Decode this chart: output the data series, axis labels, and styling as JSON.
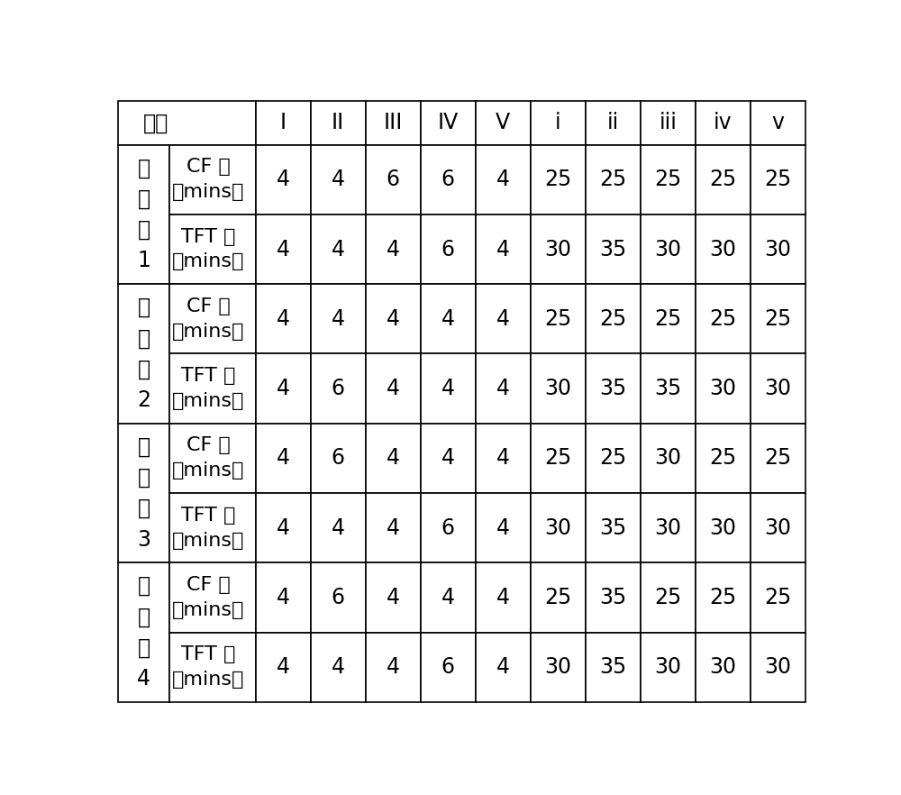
{
  "headers": [
    "编号",
    "",
    "I",
    "II",
    "III",
    "IV",
    "V",
    "i",
    "ii",
    "iii",
    "iv",
    "v"
  ],
  "row_groups": [
    {
      "group_label_lines": [
        "实",
        "施",
        "例",
        "1"
      ],
      "rows": [
        {
          "sub_line1": "CF 面",
          "sub_line2": "（mins）",
          "values": [
            "4",
            "4",
            "6",
            "6",
            "4",
            "25",
            "25",
            "25",
            "25",
            "25"
          ]
        },
        {
          "sub_line1": "TFT 面",
          "sub_line2": "（mins）",
          "values": [
            "4",
            "4",
            "4",
            "6",
            "4",
            "30",
            "35",
            "30",
            "30",
            "30"
          ]
        }
      ]
    },
    {
      "group_label_lines": [
        "实",
        "施",
        "例",
        "2"
      ],
      "rows": [
        {
          "sub_line1": "CF 面",
          "sub_line2": "（mins）",
          "values": [
            "4",
            "4",
            "4",
            "4",
            "4",
            "25",
            "25",
            "25",
            "25",
            "25"
          ]
        },
        {
          "sub_line1": "TFT 面",
          "sub_line2": "（mins）",
          "values": [
            "4",
            "6",
            "4",
            "4",
            "4",
            "30",
            "35",
            "35",
            "30",
            "30"
          ]
        }
      ]
    },
    {
      "group_label_lines": [
        "实",
        "施",
        "例",
        "3"
      ],
      "rows": [
        {
          "sub_line1": "CF 面",
          "sub_line2": "（mins）",
          "values": [
            "4",
            "6",
            "4",
            "4",
            "4",
            "25",
            "25",
            "30",
            "25",
            "25"
          ]
        },
        {
          "sub_line1": "TFT 面",
          "sub_line2": "（mins）",
          "values": [
            "4",
            "4",
            "4",
            "6",
            "4",
            "30",
            "35",
            "30",
            "30",
            "30"
          ]
        }
      ]
    },
    {
      "group_label_lines": [
        "实",
        "施",
        "例",
        "4"
      ],
      "rows": [
        {
          "sub_line1": "CF 面",
          "sub_line2": "（mins）",
          "values": [
            "4",
            "6",
            "4",
            "4",
            "4",
            "25",
            "35",
            "25",
            "25",
            "25"
          ]
        },
        {
          "sub_line1": "TFT 面",
          "sub_line2": "（mins）",
          "values": [
            "4",
            "4",
            "4",
            "6",
            "4",
            "30",
            "35",
            "30",
            "30",
            "30"
          ]
        }
      ]
    }
  ],
  "bg_color": "#ffffff",
  "border_color": "#000000",
  "text_color": "#000000",
  "header_fontsize": 17,
  "cell_fontsize": 17,
  "group_label_fontsize": 17,
  "sub_label_fontsize": 16
}
